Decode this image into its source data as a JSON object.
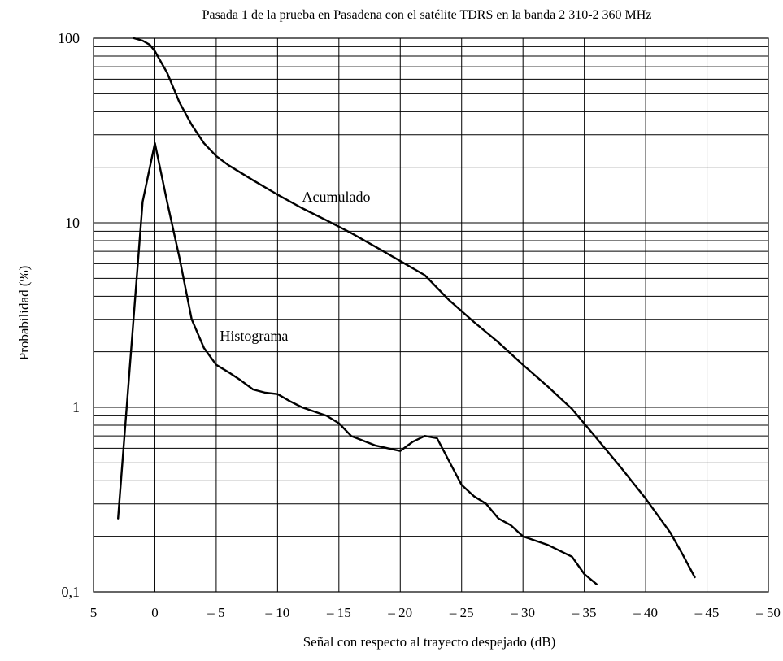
{
  "chart_data": {
    "type": "line",
    "title": "Pasada 1 de la prueba en Pasadena con el satélite TDRS en la banda 2 310-2 360 MHz",
    "xlabel": "Señal con respecto al trayecto despejado (dB)",
    "ylabel": "Probabilidad (%)",
    "xlim": [
      5,
      -50
    ],
    "ylim": [
      0.1,
      100
    ],
    "yscale": "log",
    "grid": true,
    "x_ticks": [
      5,
      0,
      -5,
      -10,
      -15,
      -20,
      -25,
      -30,
      -35,
      -40,
      -45,
      -50
    ],
    "x_tick_labels": [
      "5",
      "0",
      "– 5",
      "– 10",
      "– 15",
      "– 20",
      "– 25",
      "– 30",
      "– 35",
      "– 40",
      "– 45",
      "– 50"
    ],
    "y_ticks": [
      0.1,
      1,
      10,
      100
    ],
    "y_tick_labels": [
      "0,1",
      "1",
      "10",
      "100"
    ],
    "series": [
      {
        "name": "Acumulado",
        "x": [
          1.7,
          1.0,
          0.4,
          0,
          -1,
          -2,
          -3,
          -4,
          -5,
          -6,
          -8,
          -10,
          -12,
          -14,
          -16,
          -18,
          -20,
          -22,
          -24,
          -26,
          -28,
          -30,
          -32,
          -34,
          -36,
          -38,
          -40,
          -42,
          -43,
          -44
        ],
        "y": [
          100,
          97,
          92,
          85,
          65,
          45,
          34,
          27,
          23,
          20.5,
          17,
          14.2,
          12,
          10.3,
          8.8,
          7.4,
          6.2,
          5.2,
          3.8,
          2.9,
          2.25,
          1.7,
          1.3,
          0.98,
          0.68,
          0.47,
          0.32,
          0.21,
          0.16,
          0.12
        ]
      },
      {
        "name": "Histograma",
        "x": [
          3,
          1,
          0,
          -1,
          -2,
          -3,
          -4,
          -5,
          -6,
          -7,
          -8,
          -9,
          -10,
          -11,
          -12,
          -14,
          -15,
          -16,
          -18,
          -19,
          -20,
          -21,
          -22,
          -23,
          -25,
          -26,
          -27,
          -28,
          -29,
          -30,
          -32,
          -34,
          -35,
          -36
        ],
        "y": [
          0.25,
          13,
          27,
          13,
          6.5,
          3,
          2.1,
          1.7,
          1.55,
          1.4,
          1.25,
          1.2,
          1.18,
          1.08,
          1.0,
          0.9,
          0.82,
          0.7,
          0.62,
          0.6,
          0.58,
          0.65,
          0.7,
          0.68,
          0.38,
          0.33,
          0.3,
          0.25,
          0.23,
          0.2,
          0.18,
          0.155,
          0.125,
          0.11
        ]
      }
    ],
    "annotations": [
      {
        "text": "Acumulado",
        "x": -12,
        "y": 13
      },
      {
        "text": "Histograma",
        "x": -5.3,
        "y": 2.3
      }
    ]
  }
}
